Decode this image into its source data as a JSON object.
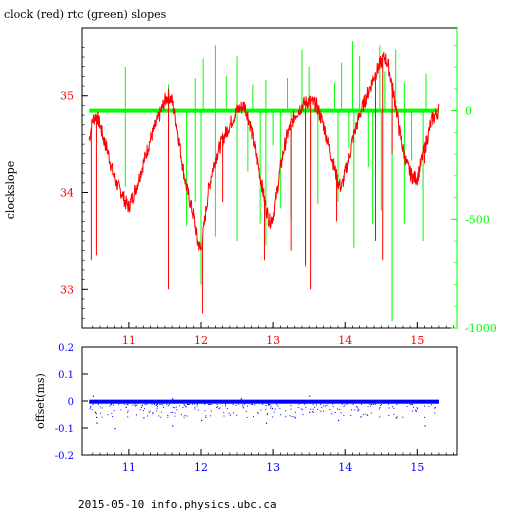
{
  "page": {
    "title": "clock (red) rtc (green) slopes",
    "footer": "2015-05-10 info.physics.ubc.ca"
  },
  "colors": {
    "clock": "#ff0000",
    "rtc": "#00ff00",
    "offset": "#0000ff",
    "axis": "#000000"
  },
  "chart_data": [
    {
      "type": "line",
      "title": "clock (red) rtc (green) slopes",
      "ylabel": "clockslope",
      "xlim": [
        10.35,
        15.55
      ],
      "ylim": [
        32.6,
        35.7
      ],
      "y2lim": [
        -1000,
        380
      ],
      "x_ticks": [
        11,
        12,
        13,
        14,
        15
      ],
      "y_ticks": [
        33,
        34,
        35
      ],
      "y2_ticks": [
        -1000,
        -500,
        0
      ],
      "series": [
        {
          "name": "clock",
          "axis": "left",
          "x": [
            10.45,
            10.5,
            10.55,
            10.6,
            10.65,
            10.7,
            10.75,
            10.8,
            10.85,
            10.9,
            10.95,
            11.0,
            11.1,
            11.2,
            11.3,
            11.4,
            11.5,
            11.55,
            11.6,
            11.65,
            11.7,
            11.75,
            11.8,
            11.85,
            11.9,
            11.95,
            12.0,
            12.05,
            12.1,
            12.15,
            12.2,
            12.3,
            12.4,
            12.5,
            12.6,
            12.65,
            12.7,
            12.75,
            12.8,
            12.85,
            12.9,
            12.95,
            13.0,
            13.05,
            13.1,
            13.15,
            13.2,
            13.3,
            13.4,
            13.5,
            13.6,
            13.7,
            13.75,
            13.8,
            13.85,
            13.9,
            13.95,
            14.0,
            14.05,
            14.1,
            14.2,
            14.3,
            14.4,
            14.5,
            14.55,
            14.6,
            14.65,
            14.7,
            14.75,
            14.8,
            14.85,
            14.9,
            14.95,
            15.0,
            15.05,
            15.1,
            15.15,
            15.2,
            15.25,
            15.3
          ],
          "y": [
            34.55,
            34.75,
            34.8,
            34.7,
            34.55,
            34.45,
            34.3,
            34.15,
            34.05,
            34.0,
            33.9,
            33.85,
            34.05,
            34.3,
            34.55,
            34.75,
            34.95,
            35.0,
            34.95,
            34.75,
            34.5,
            34.25,
            34.05,
            33.9,
            33.75,
            33.5,
            33.4,
            33.7,
            34.0,
            34.2,
            34.35,
            34.55,
            34.7,
            34.85,
            34.9,
            34.8,
            34.65,
            34.45,
            34.25,
            34.05,
            33.85,
            33.7,
            33.75,
            34.0,
            34.25,
            34.45,
            34.6,
            34.8,
            34.9,
            34.95,
            34.9,
            34.7,
            34.55,
            34.4,
            34.25,
            34.1,
            34.05,
            34.2,
            34.35,
            34.55,
            34.8,
            35.0,
            35.2,
            35.35,
            35.4,
            35.3,
            35.1,
            34.9,
            34.65,
            34.45,
            34.3,
            34.2,
            34.15,
            34.15,
            34.3,
            34.45,
            34.6,
            34.75,
            34.8,
            34.85
          ],
          "spikes": [
            {
              "x": 10.48,
              "y": 33.3
            },
            {
              "x": 10.55,
              "y": 33.35
            },
            {
              "x": 11.55,
              "y": 33.0
            },
            {
              "x": 11.95,
              "y": 33.45
            },
            {
              "x": 12.02,
              "y": 32.75
            },
            {
              "x": 12.3,
              "y": 33.9
            },
            {
              "x": 12.88,
              "y": 33.3
            },
            {
              "x": 13.25,
              "y": 33.4
            },
            {
              "x": 13.45,
              "y": 33.25
            },
            {
              "x": 13.52,
              "y": 33.0
            },
            {
              "x": 13.88,
              "y": 33.7
            },
            {
              "x": 14.42,
              "y": 33.5
            },
            {
              "x": 14.52,
              "y": 33.3
            },
            {
              "x": 14.65,
              "y": 34.4
            },
            {
              "x": 15.1,
              "y": 34.3
            }
          ]
        },
        {
          "name": "rtc",
          "axis": "right",
          "baseline": 0,
          "spikes": [
            {
              "x": 10.95,
              "y": 200
            },
            {
              "x": 10.95,
              "y": -350
            },
            {
              "x": 11.55,
              "y": 120
            },
            {
              "x": 11.55,
              "y": -200
            },
            {
              "x": 11.8,
              "y": -530
            },
            {
              "x": 11.92,
              "y": 150
            },
            {
              "x": 11.92,
              "y": -420
            },
            {
              "x": 12.0,
              "y": -800
            },
            {
              "x": 12.03,
              "y": 240
            },
            {
              "x": 12.2,
              "y": 300
            },
            {
              "x": 12.2,
              "y": -580
            },
            {
              "x": 12.35,
              "y": 160
            },
            {
              "x": 12.5,
              "y": 250
            },
            {
              "x": 12.5,
              "y": -600
            },
            {
              "x": 12.65,
              "y": -280
            },
            {
              "x": 12.72,
              "y": 120
            },
            {
              "x": 12.82,
              "y": -520
            },
            {
              "x": 12.9,
              "y": 140
            },
            {
              "x": 12.9,
              "y": -620
            },
            {
              "x": 13.0,
              "y": -160
            },
            {
              "x": 13.1,
              "y": -450
            },
            {
              "x": 13.2,
              "y": 150
            },
            {
              "x": 13.25,
              "y": -500
            },
            {
              "x": 13.4,
              "y": 280
            },
            {
              "x": 13.45,
              "y": -720
            },
            {
              "x": 13.5,
              "y": 200
            },
            {
              "x": 13.52,
              "y": -230
            },
            {
              "x": 13.62,
              "y": -430
            },
            {
              "x": 13.85,
              "y": 130
            },
            {
              "x": 13.9,
              "y": -420
            },
            {
              "x": 13.95,
              "y": 220
            },
            {
              "x": 14.05,
              "y": -170
            },
            {
              "x": 14.1,
              "y": 320
            },
            {
              "x": 14.12,
              "y": -630
            },
            {
              "x": 14.2,
              "y": 250
            },
            {
              "x": 14.32,
              "y": -260
            },
            {
              "x": 14.38,
              "y": -520
            },
            {
              "x": 14.48,
              "y": 300
            },
            {
              "x": 14.5,
              "y": -460
            },
            {
              "x": 14.55,
              "y": 180
            },
            {
              "x": 14.65,
              "y": -970
            },
            {
              "x": 14.7,
              "y": 280
            },
            {
              "x": 14.82,
              "y": 130
            },
            {
              "x": 14.82,
              "y": -520
            },
            {
              "x": 14.92,
              "y": -230
            },
            {
              "x": 15.08,
              "y": -600
            },
            {
              "x": 15.12,
              "y": 170
            }
          ]
        }
      ]
    },
    {
      "type": "scatter",
      "ylabel": "offset(ms)",
      "xlim": [
        10.35,
        15.55
      ],
      "ylim": [
        -0.2,
        0.2
      ],
      "x_ticks": [
        11,
        12,
        13,
        14,
        15
      ],
      "y_ticks": [
        -0.2,
        -0.1,
        0,
        0.1,
        0.2
      ],
      "series": [
        {
          "name": "offset",
          "x_range": [
            10.45,
            15.3
          ],
          "band": [
            -0.01,
            0.005
          ],
          "outliers": [
            {
              "x": 10.55,
              "y": -0.08
            },
            {
              "x": 10.8,
              "y": -0.1
            },
            {
              "x": 11.2,
              "y": -0.06
            },
            {
              "x": 11.6,
              "y": -0.09
            },
            {
              "x": 12.0,
              "y": -0.07
            },
            {
              "x": 12.4,
              "y": -0.05
            },
            {
              "x": 12.9,
              "y": -0.08
            },
            {
              "x": 13.3,
              "y": -0.06
            },
            {
              "x": 13.5,
              "y": -0.04
            },
            {
              "x": 13.9,
              "y": -0.07
            },
            {
              "x": 14.3,
              "y": -0.05
            },
            {
              "x": 14.7,
              "y": -0.06
            },
            {
              "x": 15.1,
              "y": -0.09
            },
            {
              "x": 10.5,
              "y": 0.02
            },
            {
              "x": 11.6,
              "y": 0.01
            },
            {
              "x": 12.55,
              "y": 0.01
            },
            {
              "x": 13.5,
              "y": 0.02
            }
          ]
        }
      ]
    }
  ]
}
